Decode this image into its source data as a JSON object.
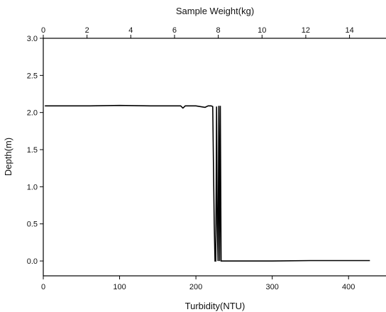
{
  "chart_data": {
    "type": "line",
    "title": "",
    "xlabel": "Turbidity(NTU)",
    "ylabel": "Depth(m)",
    "x2label": "Sample Weight(kg)",
    "xlim": [
      0,
      450
    ],
    "ylim": [
      -0.2,
      3.0
    ],
    "x2lim": [
      0,
      15.7
    ],
    "x_ticks": [
      0,
      100,
      200,
      300,
      400
    ],
    "y_ticks": [
      0.0,
      0.5,
      1.0,
      1.5,
      2.0,
      2.5,
      3.0
    ],
    "y_tick_labels": [
      "0.0",
      "0.5",
      "1.0",
      "1.5",
      "2.0",
      "2.5",
      "3.0"
    ],
    "x2_ticks": [
      0,
      2,
      4,
      6,
      8,
      10,
      12,
      14
    ],
    "grid": false,
    "series": [
      {
        "x": [
          2,
          30,
          60,
          100,
          140,
          180,
          183,
          186,
          190,
          200,
          212,
          216,
          220,
          222,
          224,
          225,
          226,
          227,
          228,
          229,
          230,
          231,
          232,
          233,
          235,
          240,
          260,
          300,
          350,
          400,
          428
        ],
        "y": [
          2.09,
          2.09,
          2.09,
          2.095,
          2.09,
          2.09,
          2.06,
          2.09,
          2.09,
          2.09,
          2.07,
          2.09,
          2.09,
          2.08,
          0.5,
          0.0,
          0.0,
          2.08,
          0.5,
          0.0,
          2.09,
          0.0,
          2.09,
          0.0,
          0.0,
          0.0,
          0.0,
          0.0,
          0.005,
          0.005,
          0.005
        ]
      }
    ]
  }
}
